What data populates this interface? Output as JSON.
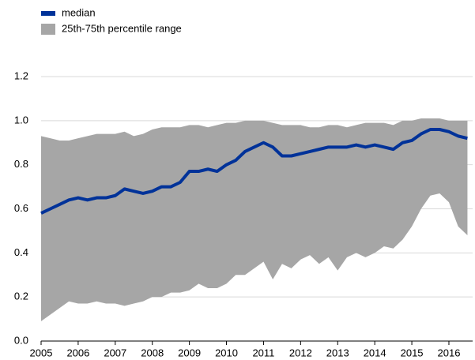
{
  "chart_data": {
    "type": "line",
    "x": [
      2005,
      2005.25,
      2005.5,
      2005.75,
      2006,
      2006.25,
      2006.5,
      2006.75,
      2007,
      2007.25,
      2007.5,
      2007.75,
      2008,
      2008.25,
      2008.5,
      2008.75,
      2009,
      2009.25,
      2009.5,
      2009.75,
      2010,
      2010.25,
      2010.5,
      2010.75,
      2011,
      2011.25,
      2011.5,
      2011.75,
      2012,
      2012.25,
      2012.5,
      2012.75,
      2013,
      2013.25,
      2013.5,
      2013.75,
      2014,
      2014.25,
      2014.5,
      2014.75,
      2015,
      2015.25,
      2015.5,
      2015.75,
      2016,
      2016.25,
      2016.5
    ],
    "series": [
      {
        "name": "median",
        "color": "#003299",
        "values": [
          0.58,
          0.6,
          0.62,
          0.64,
          0.65,
          0.64,
          0.65,
          0.65,
          0.66,
          0.69,
          0.68,
          0.67,
          0.68,
          0.7,
          0.7,
          0.72,
          0.77,
          0.77,
          0.78,
          0.77,
          0.8,
          0.82,
          0.86,
          0.88,
          0.9,
          0.88,
          0.84,
          0.84,
          0.85,
          0.86,
          0.87,
          0.88,
          0.88,
          0.88,
          0.89,
          0.88,
          0.89,
          0.88,
          0.87,
          0.9,
          0.91,
          0.94,
          0.96,
          0.96,
          0.95,
          0.93,
          0.92
        ]
      },
      {
        "name": "25th-75th percentile range",
        "color": "#a6a6a6",
        "upper": [
          0.93,
          0.92,
          0.91,
          0.91,
          0.92,
          0.93,
          0.94,
          0.94,
          0.94,
          0.95,
          0.93,
          0.94,
          0.96,
          0.97,
          0.97,
          0.97,
          0.98,
          0.98,
          0.97,
          0.98,
          0.99,
          0.99,
          1.0,
          1.0,
          1.0,
          0.99,
          0.98,
          0.98,
          0.98,
          0.97,
          0.97,
          0.98,
          0.98,
          0.97,
          0.98,
          0.99,
          0.99,
          0.99,
          0.98,
          1.0,
          1.0,
          1.01,
          1.01,
          1.01,
          1.0,
          1.0,
          1.0
        ],
        "lower": [
          0.09,
          0.12,
          0.15,
          0.18,
          0.17,
          0.17,
          0.18,
          0.17,
          0.17,
          0.16,
          0.17,
          0.18,
          0.2,
          0.2,
          0.22,
          0.22,
          0.23,
          0.26,
          0.24,
          0.24,
          0.26,
          0.3,
          0.3,
          0.33,
          0.36,
          0.28,
          0.35,
          0.33,
          0.37,
          0.39,
          0.35,
          0.38,
          0.32,
          0.38,
          0.4,
          0.38,
          0.4,
          0.43,
          0.42,
          0.46,
          0.52,
          0.6,
          0.66,
          0.67,
          0.63,
          0.52,
          0.48
        ]
      }
    ],
    "xlim": [
      2005,
      2016.64
    ],
    "xticks": [
      2005,
      2006,
      2007,
      2008,
      2009,
      2010,
      2011,
      2012,
      2013,
      2014,
      2015,
      2016
    ],
    "ylim": [
      0,
      1.2
    ],
    "yticks": [
      {
        "value": 0,
        "label": "0.0"
      },
      0.2,
      0.4,
      0.6,
      0.8,
      {
        "value": 1,
        "label": "1.0"
      },
      1.2
    ],
    "grid": true,
    "legend": "top-left"
  }
}
